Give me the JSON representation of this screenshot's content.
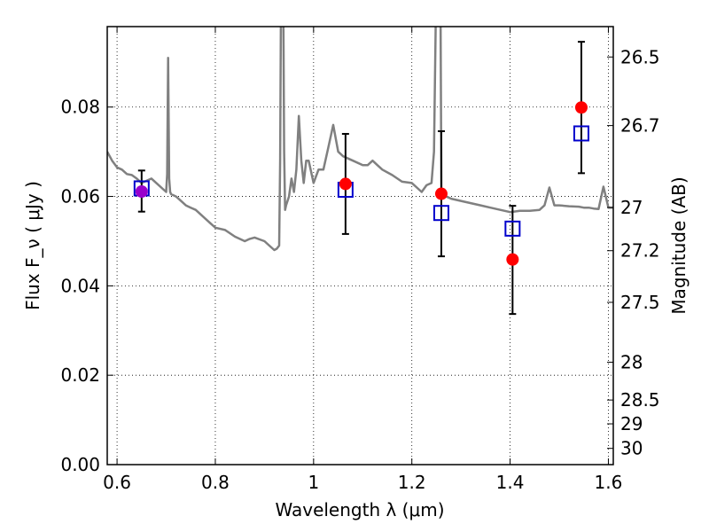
{
  "chart_data": {
    "type": "scatter",
    "xlabel": "Wavelength  λ (μm)",
    "ylabel": "Flux  F_ν  ( μJy )",
    "ylabel_right": "Magnitude (AB)",
    "xlim": [
      0.58,
      1.61
    ],
    "ylim": [
      0.0,
      0.098
    ],
    "x_ticks": [
      0.6,
      0.8,
      1.0,
      1.2,
      1.4,
      1.6
    ],
    "x_tick_labels": [
      "0.6",
      "0.8",
      "1",
      "1.2",
      "1.4",
      "1.6"
    ],
    "y_ticks": [
      0.0,
      0.02,
      0.04,
      0.06,
      0.08
    ],
    "y_tick_labels": [
      "0.00",
      "0.02",
      "0.04",
      "0.06",
      "0.08"
    ],
    "right_ticks": [
      {
        "label": "26.5",
        "mag": 26.5
      },
      {
        "label": "26.7",
        "mag": 26.7
      },
      {
        "label": "27",
        "mag": 27.0
      },
      {
        "label": "27.2",
        "mag": 27.2
      },
      {
        "label": "27.5",
        "mag": 27.5
      },
      {
        "label": "28",
        "mag": 28.0
      },
      {
        "label": "28.5",
        "mag": 28.5
      },
      {
        "label": "29",
        "mag": 29.0
      },
      {
        "label": "30",
        "mag": 30.0
      }
    ],
    "grid": true,
    "grid_style": "dotted",
    "colors": {
      "model": "#808080",
      "observed": "#ff0000",
      "model_photometry": "#0000cc",
      "blend": "#9900cc",
      "errorbar": "#000000"
    },
    "model_spectrum": {
      "x": [
        0.58,
        0.585,
        0.59,
        0.6,
        0.61,
        0.62,
        0.63,
        0.64,
        0.65,
        0.66,
        0.67,
        0.68,
        0.69,
        0.7,
        0.702,
        0.704,
        0.706,
        0.708,
        0.71,
        0.72,
        0.73,
        0.74,
        0.75,
        0.76,
        0.77,
        0.78,
        0.79,
        0.8,
        0.82,
        0.84,
        0.86,
        0.87,
        0.88,
        0.9,
        0.91,
        0.92,
        0.925,
        0.93,
        0.932,
        0.934,
        0.936,
        0.938,
        0.94,
        0.942,
        0.944,
        0.95,
        0.955,
        0.96,
        0.965,
        0.97,
        0.975,
        0.98,
        0.985,
        0.99,
        1.0,
        1.01,
        1.02,
        1.03,
        1.04,
        1.05,
        1.06,
        1.08,
        1.1,
        1.11,
        1.12,
        1.13,
        1.14,
        1.16,
        1.18,
        1.2,
        1.21,
        1.22,
        1.23,
        1.24,
        1.245,
        1.25,
        1.255,
        1.258,
        1.26,
        1.262,
        1.265,
        1.27,
        1.28,
        1.3,
        1.32,
        1.34,
        1.36,
        1.38,
        1.4,
        1.42,
        1.44,
        1.46,
        1.47,
        1.48,
        1.49,
        1.5,
        1.52,
        1.54,
        1.55,
        1.56,
        1.57,
        1.58,
        1.59,
        1.6,
        1.61
      ],
      "y": [
        0.07,
        0.069,
        0.068,
        0.0665,
        0.066,
        0.065,
        0.0648,
        0.064,
        0.063,
        0.0635,
        0.064,
        0.063,
        0.062,
        0.061,
        0.065,
        0.091,
        0.064,
        0.061,
        0.0605,
        0.06,
        0.059,
        0.058,
        0.0575,
        0.057,
        0.056,
        0.055,
        0.054,
        0.053,
        0.0525,
        0.051,
        0.05,
        0.0505,
        0.0508,
        0.05,
        0.049,
        0.048,
        0.0483,
        0.049,
        0.068,
        0.11,
        0.11,
        0.11,
        0.07,
        0.057,
        0.058,
        0.06,
        0.064,
        0.061,
        0.066,
        0.078,
        0.068,
        0.063,
        0.068,
        0.068,
        0.063,
        0.066,
        0.066,
        0.071,
        0.076,
        0.07,
        0.069,
        0.068,
        0.067,
        0.067,
        0.068,
        0.067,
        0.066,
        0.0648,
        0.0633,
        0.063,
        0.062,
        0.061,
        0.0625,
        0.063,
        0.07,
        0.11,
        0.11,
        0.11,
        0.062,
        0.06,
        0.06,
        0.06,
        0.0595,
        0.059,
        0.0585,
        0.058,
        0.0575,
        0.057,
        0.0565,
        0.0568,
        0.0568,
        0.057,
        0.058,
        0.062,
        0.058,
        0.058,
        0.0578,
        0.0577,
        0.0575,
        0.0575,
        0.0573,
        0.0572,
        0.0622,
        0.0575,
        0.0575
      ]
    },
    "observed": [
      {
        "x": 1.065,
        "y": 0.0628,
        "err_low": 0.0112,
        "err_high": 0.0112
      },
      {
        "x": 1.26,
        "y": 0.0606,
        "err_low": 0.014,
        "err_high": 0.014
      },
      {
        "x": 1.405,
        "y": 0.0459,
        "err_low": 0.0122,
        "err_high": 0.012
      },
      {
        "x": 1.545,
        "y": 0.0799,
        "err_low": 0.0147,
        "err_high": 0.0147
      }
    ],
    "blend_point": {
      "x": 0.65,
      "y": 0.0611,
      "err_low": 0.0045,
      "err_high": 0.0047
    },
    "model_photometry": [
      {
        "x": 0.65,
        "y": 0.0618
      },
      {
        "x": 1.065,
        "y": 0.0615
      },
      {
        "x": 1.26,
        "y": 0.0563
      },
      {
        "x": 1.405,
        "y": 0.0528
      },
      {
        "x": 1.545,
        "y": 0.0741
      }
    ]
  }
}
